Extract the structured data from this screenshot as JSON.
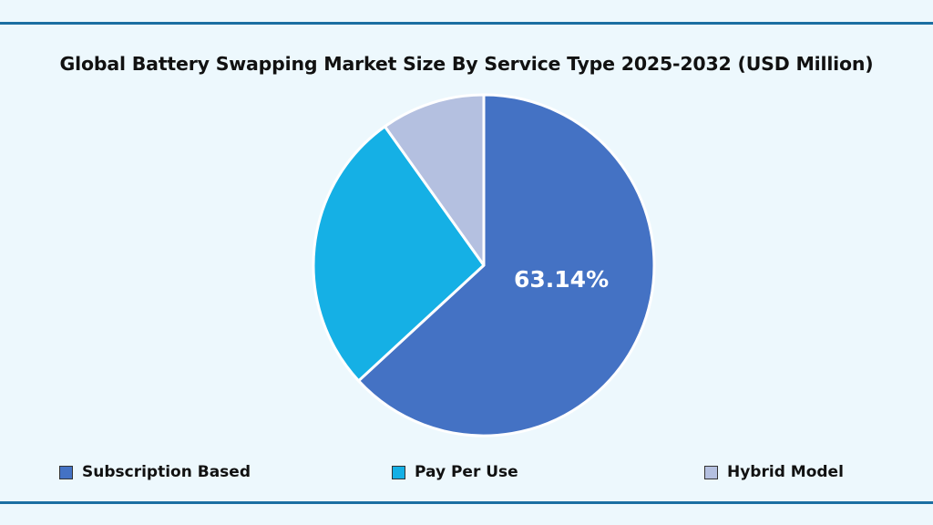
{
  "chart_data": {
    "type": "pie",
    "title": "Global Battery Swapping Market Size By Service Type 2025-2032 (USD Million)",
    "categories": [
      "Subscription Based",
      "Pay Per Use",
      "Hybrid Model"
    ],
    "values": [
      63.14,
      27.0,
      9.86
    ],
    "colors": [
      "#4472C4",
      "#15B0E5",
      "#B4C0E0"
    ],
    "data_labels": [
      "63.14%",
      "",
      ""
    ],
    "legend_position": "bottom",
    "unit": "%"
  },
  "colors": {
    "background": "#EDF8FD",
    "rule": "#1B6FA2"
  }
}
